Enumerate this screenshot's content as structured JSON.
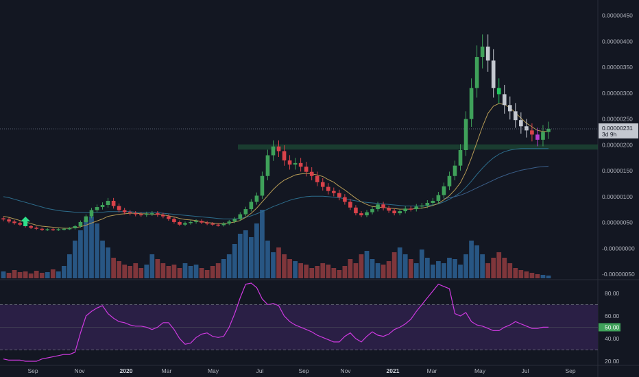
{
  "chart_data": [
    {
      "type": "candlestick",
      "title": "",
      "xlabel": "",
      "ylabel": "",
      "colors": {
        "background": "#131722",
        "up": "#3fa15a",
        "down": "#d9424a",
        "neutral": "#c4c8d0",
        "signal": "#b83fcf",
        "zone": "#1e4a36"
      },
      "x_ticks": [
        "Sep",
        "Nov",
        "2020",
        "Mar",
        "May",
        "Jul",
        "Sep",
        "Nov",
        "2021",
        "Mar",
        "May",
        "Jul",
        "Sep"
      ],
      "y_ticks": [
        "0.00000450",
        "0.00000400",
        "0.00000350",
        "0.00000300",
        "0.00000250",
        "0.00000200",
        "0.00000150",
        "0.00000100",
        "0.00000050",
        "-0.00000000",
        "-0.00000050"
      ],
      "ylim": [
        -5.9e-07,
        4.8e-06
      ],
      "last_price_label": "0.00000231",
      "countdown_label": "3d 9h",
      "last_price": 2.31e-06,
      "support_zone": [
        1.91e-06,
        2.01e-06
      ],
      "close": [
        5.6e-07,
        5.2e-07,
        4.9e-07,
        4.6e-07,
        4.3e-07,
        4e-07,
        3.8e-07,
        3.6e-07,
        3.7e-07,
        3.6e-07,
        3.7e-07,
        3.8e-07,
        3.9e-07,
        4.3e-07,
        5.1e-07,
        6.2e-07,
        7.4e-07,
        8e-07,
        8.4e-07,
        9.2e-07,
        8.2e-07,
        7.4e-07,
        7e-07,
        6.8e-07,
        6.6e-07,
        6.5e-07,
        6.7e-07,
        6.8e-07,
        6.5e-07,
        6.2e-07,
        5.7e-07,
        5.1e-07,
        4.6e-07,
        4.9e-07,
        5.1e-07,
        5.3e-07,
        5e-07,
        4.8e-07,
        4.6e-07,
        4.5e-07,
        4.8e-07,
        5.2e-07,
        5.7e-07,
        6.6e-07,
        7.6e-07,
        9e-07,
        1.02e-06,
        1.4e-06,
        1.8e-06,
        1.97e-06,
        1.88e-06,
        1.7e-06,
        1.62e-06,
        1.65e-06,
        1.58e-06,
        1.48e-06,
        1.4e-06,
        1.28e-06,
        1.19e-06,
        1.11e-06,
        1.07e-06,
        9.9e-07,
        9e-07,
        7.9e-07,
        6.8e-07,
        6.4e-07,
        7e-07,
        7.6e-07,
        8.5e-07,
        7.8e-07,
        7.3e-07,
        6.8e-07,
        7.2e-07,
        7.7e-07,
        7.6e-07,
        8.1e-07,
        8.3e-07,
        8.8e-07,
        9.2e-07,
        1.03e-06,
        1.2e-06,
        1.4e-06,
        1.6e-06,
        1.9e-06,
        2.5e-06,
        3.1e-06,
        3.7e-06,
        3.9e-06,
        3.63e-06,
        3.1e-06,
        2.98e-06,
        2.77e-06,
        2.65e-06,
        2.48e-06,
        2.36e-06,
        2.28e-06,
        2.2e-06,
        2.1e-06,
        2.25e-06,
        2.31e-06
      ],
      "fast_ma": [
        6.2e-07,
        6e-07,
        5.7e-07,
        5.4e-07,
        5.1e-07,
        4.8e-07,
        4.5e-07,
        4.3e-07,
        4.2e-07,
        4.1e-07,
        4e-07,
        3.9e-07,
        3.9e-07,
        4e-07,
        4.2e-07,
        4.5e-07,
        4.9e-07,
        5.3e-07,
        5.7e-07,
        6.2e-07,
        6.4e-07,
        6.6e-07,
        6.7e-07,
        6.8e-07,
        6.8e-07,
        6.7e-07,
        6.7e-07,
        6.6e-07,
        6.6e-07,
        6.5e-07,
        6.3e-07,
        6.1e-07,
        5.8e-07,
        5.6e-07,
        5.5e-07,
        5.4e-07,
        5.2e-07,
        5e-07,
        4.9e-07,
        4.8e-07,
        4.8e-07,
        4.9e-07,
        5.1e-07,
        5.4e-07,
        6e-07,
        6.8e-07,
        7.8e-07,
        9e-07,
        1.02e-06,
        1.14e-06,
        1.24e-06,
        1.32e-06,
        1.37e-06,
        1.42e-06,
        1.44e-06,
        1.45e-06,
        1.44e-06,
        1.42e-06,
        1.39e-06,
        1.33e-06,
        1.28e-06,
        1.2e-06,
        1.13e-06,
        1.05e-06,
        9.7e-07,
        9e-07,
        8.5e-07,
        8.1e-07,
        8e-07,
        7.9e-07,
        7.8e-07,
        7.7e-07,
        7.6e-07,
        7.6e-07,
        7.6e-07,
        7.7e-07,
        7.8e-07,
        8e-07,
        8.3e-07,
        8.7e-07,
        9.4e-07,
        1.02e-06,
        1.13e-06,
        1.27e-06,
        1.48e-06,
        1.75e-06,
        2.05e-06,
        2.35e-06,
        2.61e-06,
        2.75e-06,
        2.8e-06,
        2.78e-06,
        2.72e-06,
        2.62e-06,
        2.52e-06,
        2.42e-06,
        2.35e-06,
        2.28e-06,
        2.26e-06,
        2.26e-06
      ],
      "slow_ma": [
        1e-06,
        9.8e-07,
        9.5e-07,
        9.2e-07,
        8.9e-07,
        8.6e-07,
        8.3e-07,
        8e-07,
        7.7e-07,
        7.5e-07,
        7.3e-07,
        7.2e-07,
        7.1e-07,
        7e-07,
        7e-07,
        6.9e-07,
        6.9e-07,
        7e-07,
        7e-07,
        7.1e-07,
        7.1e-07,
        7.1e-07,
        7.1e-07,
        7.1e-07,
        7e-07,
        7e-07,
        7e-07,
        7e-07,
        6.9e-07,
        6.8e-07,
        6.7e-07,
        6.6e-07,
        6.5e-07,
        6.4e-07,
        6.3e-07,
        6.2e-07,
        6.1e-07,
        6e-07,
        5.9e-07,
        5.8e-07,
        5.7e-07,
        5.7e-07,
        5.7e-07,
        5.8e-07,
        6e-07,
        6.3e-07,
        6.7e-07,
        7.1e-07,
        7.6e-07,
        8.1e-07,
        8.5e-07,
        8.9e-07,
        9.3e-07,
        9.6e-07,
        9.8e-07,
        1e-06,
        1.01e-06,
        1.01e-06,
        1.01e-06,
        1e-06,
        9.9e-07,
        9.8e-07,
        9.6e-07,
        9.4e-07,
        9.2e-07,
        9e-07,
        8.9e-07,
        8.8e-07,
        8.7e-07,
        8.6e-07,
        8.5e-07,
        8.4e-07,
        8.3e-07,
        8.2e-07,
        8.2e-07,
        8.2e-07,
        8.2e-07,
        8.3e-07,
        8.4e-07,
        8.6e-07,
        9e-07,
        9.5e-07,
        1.01e-06,
        1.08e-06,
        1.18e-06,
        1.3e-06,
        1.43e-06,
        1.55e-06,
        1.66e-06,
        1.75e-06,
        1.82e-06,
        1.87e-06,
        1.9e-06,
        1.92e-06,
        1.93e-06,
        1.93e-06,
        1.93e-06,
        1.93e-06,
        1.93e-06,
        1.93e-06
      ],
      "long_ma": [
        null,
        null,
        null,
        null,
        null,
        null,
        null,
        null,
        null,
        null,
        null,
        null,
        null,
        null,
        null,
        null,
        null,
        null,
        null,
        null,
        null,
        null,
        null,
        null,
        null,
        null,
        null,
        null,
        null,
        null,
        null,
        null,
        null,
        null,
        null,
        null,
        null,
        null,
        null,
        null,
        null,
        null,
        null,
        null,
        null,
        null,
        null,
        null,
        null,
        null,
        null,
        null,
        null,
        null,
        null,
        null,
        null,
        null,
        null,
        null,
        null,
        null,
        null,
        null,
        null,
        null,
        null,
        null,
        null,
        null,
        null,
        null,
        null,
        null,
        null,
        null,
        null,
        null,
        null,
        null,
        9.6e-07,
        9.8e-07,
        1e-06,
        1.03e-06,
        1.07e-06,
        1.12e-06,
        1.17e-06,
        1.22e-06,
        1.27e-06,
        1.32e-06,
        1.37e-06,
        1.41e-06,
        1.45e-06,
        1.48e-06,
        1.51e-06,
        1.53e-06,
        1.55e-06,
        1.57e-06,
        1.58e-06,
        1.59e-06
      ],
      "volume": [
        0.1,
        0.08,
        0.12,
        0.09,
        0.1,
        0.07,
        0.11,
        0.08,
        0.09,
        0.13,
        0.1,
        0.18,
        0.35,
        0.55,
        0.7,
        0.85,
        0.9,
        0.8,
        0.55,
        0.45,
        0.3,
        0.25,
        0.2,
        0.18,
        0.22,
        0.15,
        0.2,
        0.35,
        0.28,
        0.22,
        0.18,
        0.2,
        0.15,
        0.22,
        0.18,
        0.2,
        0.15,
        0.12,
        0.18,
        0.22,
        0.28,
        0.35,
        0.5,
        0.65,
        0.7,
        0.6,
        0.8,
        1.0,
        0.55,
        0.38,
        0.45,
        0.35,
        0.28,
        0.25,
        0.22,
        0.2,
        0.15,
        0.18,
        0.22,
        0.2,
        0.15,
        0.12,
        0.18,
        0.28,
        0.22,
        0.35,
        0.4,
        0.28,
        0.22,
        0.2,
        0.25,
        0.38,
        0.45,
        0.35,
        0.28,
        0.22,
        0.42,
        0.3,
        0.2,
        0.25,
        0.22,
        0.3,
        0.28,
        0.2,
        0.35,
        0.55,
        0.48,
        0.35,
        0.22,
        0.3,
        0.38,
        0.3,
        0.22,
        0.15,
        0.12,
        0.1,
        0.08,
        0.06,
        0.05,
        0.04
      ]
    },
    {
      "type": "line",
      "title": "",
      "ylim": [
        17,
        92
      ],
      "y_ticks": [
        "80.00",
        "60.00",
        "40.00",
        "20.00"
      ],
      "upper_band": 70,
      "lower_band": 30,
      "mid_level": 50,
      "last_value_label": "50.00",
      "colors": {
        "line": "#ce3ae0",
        "band": "#2a1f45",
        "badge": "#3fa15a"
      },
      "values": [
        22,
        21,
        21,
        21,
        20,
        20,
        20,
        22,
        23,
        24,
        25,
        26,
        26,
        28,
        45,
        60,
        64,
        67,
        69,
        62,
        58,
        55,
        54,
        52,
        51,
        51,
        50,
        48,
        50,
        54,
        54,
        48,
        40,
        35,
        36,
        41,
        44,
        45,
        42,
        41,
        42,
        50,
        62,
        76,
        88,
        89,
        85,
        75,
        70,
        71,
        69,
        60,
        55,
        52,
        50,
        48,
        46,
        43,
        41,
        39,
        37,
        37,
        42,
        45,
        40,
        37,
        42,
        46,
        43,
        42,
        44,
        48,
        50,
        53,
        57,
        64,
        70,
        76,
        82,
        88,
        86,
        84,
        62,
        60,
        63,
        55,
        52,
        51,
        49,
        47,
        47,
        50,
        52,
        55,
        53,
        51,
        49,
        49,
        50,
        50
      ]
    }
  ]
}
